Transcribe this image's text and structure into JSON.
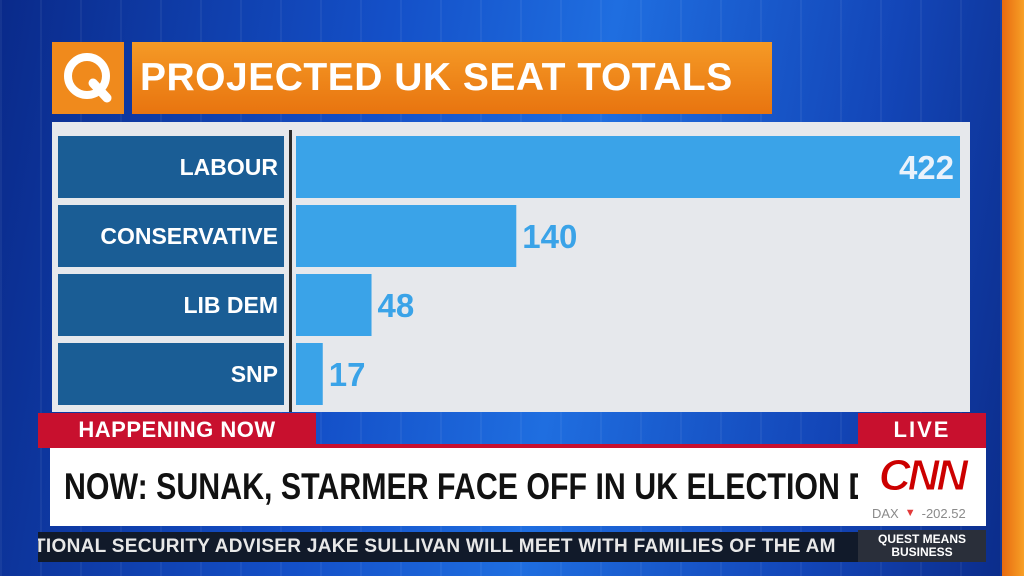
{
  "title": "PROJECTED UK SEAT TOTALS",
  "logo_letter": "Q",
  "colors": {
    "orange": "#f08a1c",
    "label_box": "#1a5d95",
    "bar": "#3aa3e8",
    "value_on_bar": "#eaf2fb",
    "value_off_bar": "#3aa3e8",
    "red": "#c8102e"
  },
  "chart_data": {
    "type": "bar",
    "orientation": "horizontal",
    "title": "PROJECTED UK SEAT TOTALS",
    "categories": [
      "LABOUR",
      "CONSERVATIVE",
      "LIB DEM",
      "SNP"
    ],
    "values": [
      422,
      140,
      48,
      17
    ],
    "value_labels": [
      "422",
      "140",
      "48",
      "17"
    ],
    "xlim": [
      0,
      422
    ],
    "grid": false,
    "legend": "none"
  },
  "lower_third": {
    "section_label": "HAPPENING NOW",
    "live_label": "LIVE",
    "headline": "NOW: SUNAK, STARMER FACE OFF IN UK ELECTION DEBATE",
    "network_logo": "CNN",
    "market_name": "DAX",
    "market_direction_icon": "down-triangle-icon",
    "market_change": "-202.52",
    "ticker": "TIONAL SECURITY ADVISER JAKE SULLIVAN WILL MEET WITH FAMILIES OF THE AM",
    "show_line1": "QUEST MEANS",
    "show_line2": "BUSINESS"
  }
}
